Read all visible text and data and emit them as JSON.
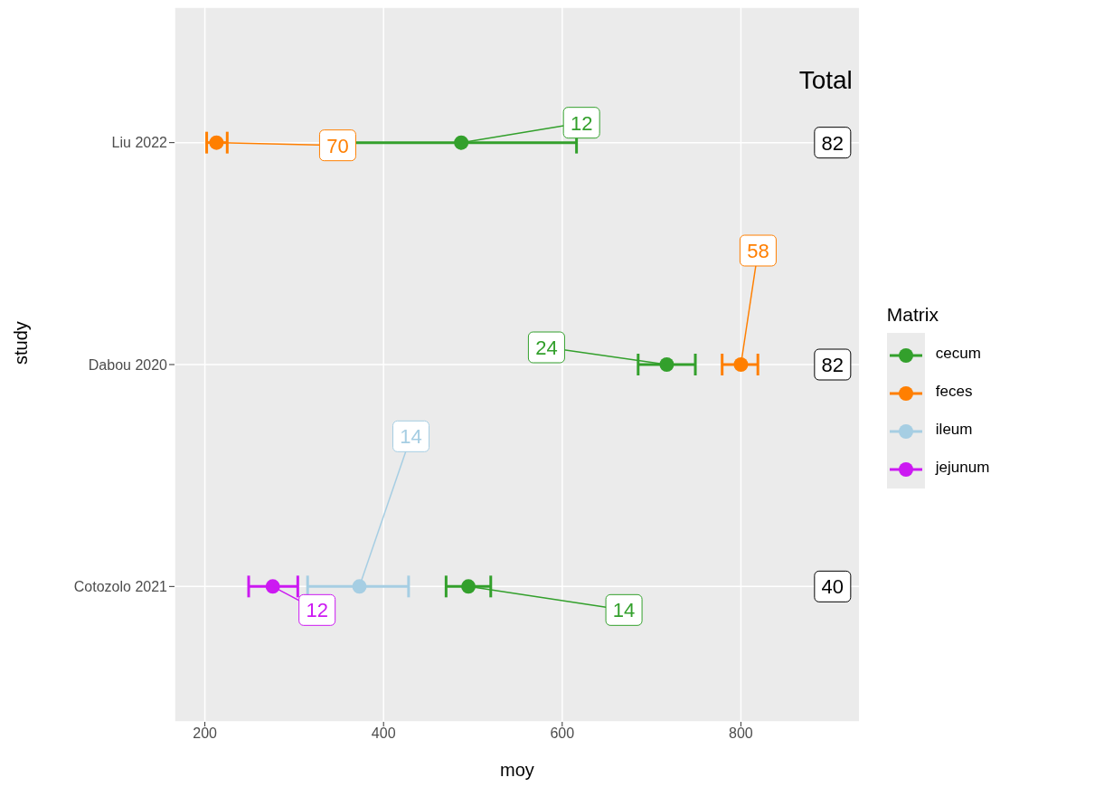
{
  "chart_data": {
    "type": "scatter",
    "orientation": "horizontal",
    "xlabel": "moy",
    "ylabel": "study",
    "legend_title": "Matrix",
    "categories": [
      "Liu 2022",
      "Dabou 2020",
      "Cotozolo 2021"
    ],
    "series": [
      {
        "name": "cecum",
        "color": "#33a02c",
        "values": [
          487,
          717,
          495
        ],
        "errors": [
          [
            355,
            616
          ],
          [
            685,
            749
          ],
          [
            470,
            520
          ]
        ]
      },
      {
        "name": "feces",
        "color": "#ff7f00",
        "values": [
          213,
          800,
          null
        ],
        "errors": [
          [
            202,
            225
          ],
          [
            779,
            819
          ],
          null
        ]
      },
      {
        "name": "ileum",
        "color": "#a6cee3",
        "values": [
          null,
          null,
          373
        ],
        "errors": [
          null,
          null,
          [
            315,
            428
          ]
        ]
      },
      {
        "name": "jejunum",
        "color": "#cc19f2",
        "values": [
          null,
          null,
          276
        ],
        "errors": [
          null,
          null,
          [
            249,
            304
          ]
        ]
      }
    ],
    "annotations": [
      {
        "text": "70",
        "x": 213,
        "y": "Liu 2022"
      },
      {
        "text": "12",
        "x": 487,
        "y": "Liu 2022"
      },
      {
        "text": "58",
        "x": 800,
        "y": "Dabou 2020"
      },
      {
        "text": "24",
        "x": 717,
        "y": "Dabou 2020"
      },
      {
        "text": "14",
        "x": 373,
        "y": "Cotozolo 2021"
      },
      {
        "text": "12",
        "x": 276,
        "y": "Cotozolo 2021"
      },
      {
        "text": "14",
        "x": 495,
        "y": "Cotozolo 2021"
      },
      "Total"
    ],
    "totals": [
      "82",
      "82",
      "40"
    ],
    "xlim": [
      166,
      933
    ],
    "xticks": [
      200,
      400,
      600,
      800
    ],
    "grid": true,
    "legend": "right",
    "marker": "circle"
  }
}
